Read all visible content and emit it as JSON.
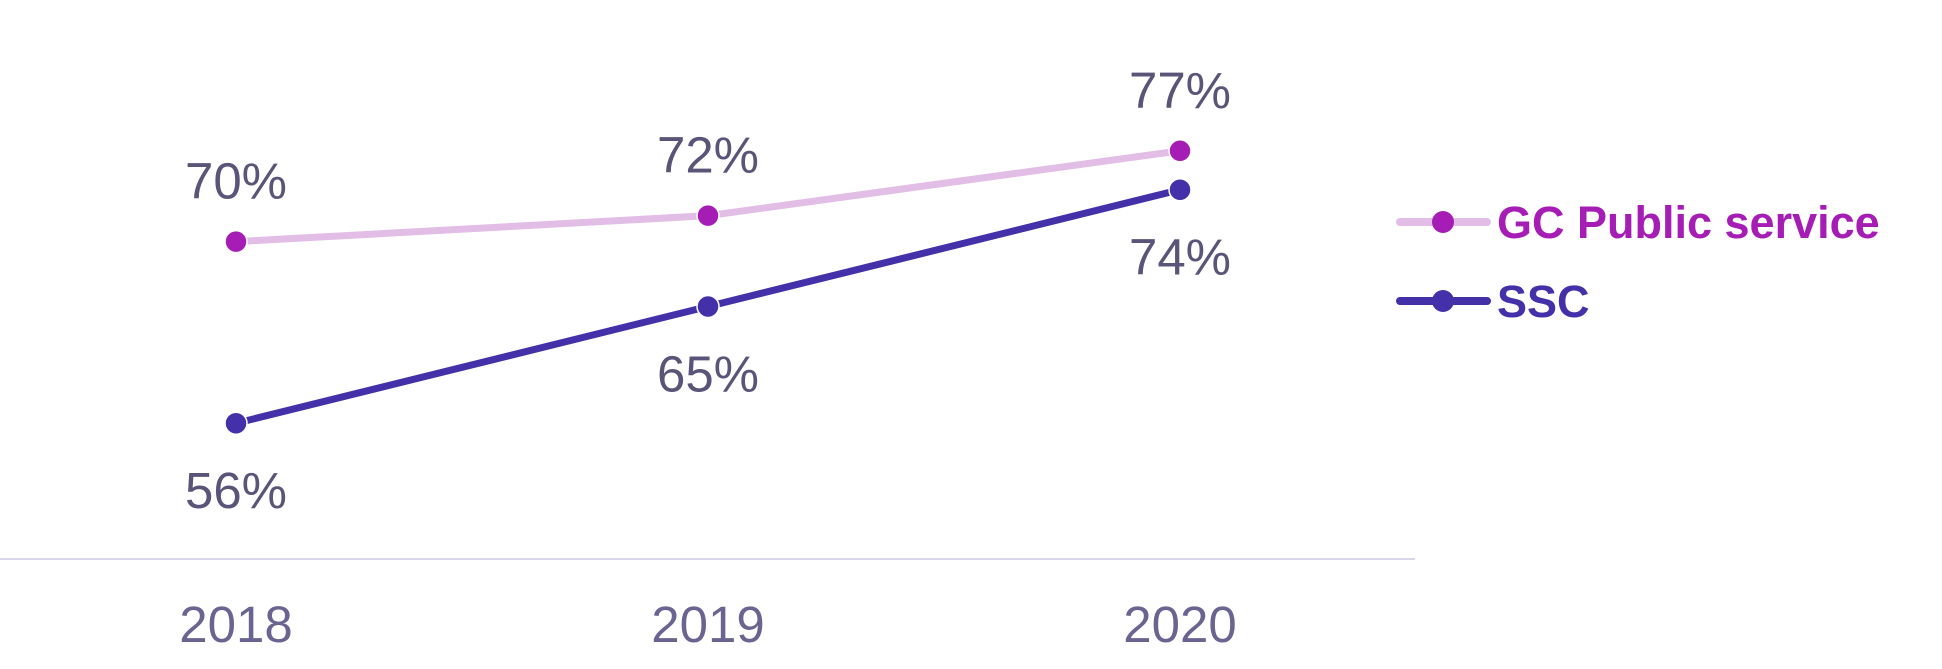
{
  "chart_data": {
    "type": "line",
    "title": "",
    "xlabel": "",
    "ylabel": "",
    "categories": [
      "2018",
      "2019",
      "2020"
    ],
    "series": [
      {
        "name": "GC Public service",
        "values": [
          70,
          72,
          77
        ],
        "labels": [
          "70%",
          "72%",
          "77%"
        ],
        "line_color": "#e2bde6",
        "marker_color": "#a51db5",
        "label_position": "above"
      },
      {
        "name": "SSC",
        "values": [
          56,
          65,
          74
        ],
        "labels": [
          "56%",
          "65%",
          "74%"
        ],
        "line_color": "#4430a8",
        "marker_color": "#4430a8",
        "label_position": "below"
      }
    ],
    "ylim": [
      47,
      84
    ],
    "grid": false,
    "legend_position": "right"
  },
  "colors": {
    "axis_line": "#d8d6ea",
    "tick_text": "#6a6490",
    "data_label_text": "#5a5478"
  }
}
